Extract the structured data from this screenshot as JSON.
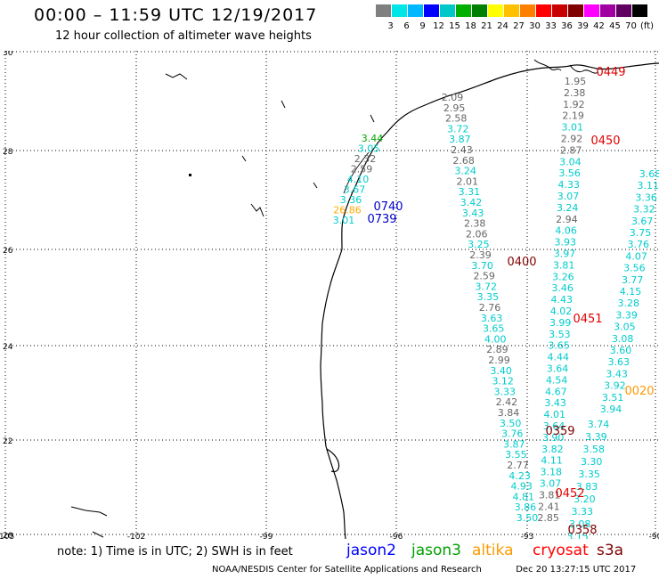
{
  "header": {
    "title": "00:00 – 11:59 UTC 12/19/2017",
    "subtitle": "12 hour collection of altimeter wave heights"
  },
  "scale": {
    "colors": [
      "#7f7f7f",
      "#00e5e5",
      "#00b8ff",
      "#0000ff",
      "#00c8c8",
      "#00b000",
      "#008000",
      "#ffff00",
      "#ffc000",
      "#ff8000",
      "#ff0000",
      "#c80000",
      "#800000",
      "#ff00ff",
      "#a000a0",
      "#600060",
      "#000000"
    ],
    "labels": [
      "3",
      "6",
      "9",
      "12",
      "15",
      "18",
      "21",
      "24",
      "27",
      "30",
      "33",
      "36",
      "39",
      "42",
      "45",
      "70",
      "(ft)"
    ]
  },
  "map": {
    "lat_ticks": [
      "30",
      "28",
      "26",
      "24",
      "22",
      "20"
    ],
    "lon_ticks": [
      "-105",
      "-102",
      "-99",
      "-96",
      "-93",
      "-90"
    ],
    "pass_labels": [
      {
        "text": "0449",
        "color": "#e00000"
      },
      {
        "text": "0450",
        "color": "#e00000"
      },
      {
        "text": "0740",
        "color": "#0000cc"
      },
      {
        "text": "0739",
        "color": "#0000cc"
      },
      {
        "text": "0400",
        "color": "#800000"
      },
      {
        "text": "0451",
        "color": "#e00000"
      },
      {
        "text": "0020",
        "color": "#ff9900"
      },
      {
        "text": "0359",
        "color": "#800000"
      },
      {
        "text": "0452",
        "color": "#e00000"
      },
      {
        "text": "0358",
        "color": "#800000"
      }
    ],
    "tracks": [
      {
        "name": "coast_track",
        "values": [
          {
            "v": "3.44",
            "c": "#00aa00"
          },
          {
            "v": "3.05",
            "c": "#00cccc"
          },
          {
            "v": "2.32",
            "c": "#666666"
          },
          {
            "v": "2.59",
            "c": "#666666"
          },
          {
            "v": "4.10",
            "c": "#00cccc"
          },
          {
            "v": "3.67",
            "c": "#00cccc"
          },
          {
            "v": "3.36",
            "c": "#00cccc"
          },
          {
            "v": "26.86",
            "c": "#ffaa00"
          },
          {
            "v": "3.01",
            "c": "#00cccc"
          }
        ]
      },
      {
        "name": "track_a",
        "values": [
          {
            "v": "2.09",
            "c": "#666666"
          },
          {
            "v": "2.95",
            "c": "#666666"
          },
          {
            "v": "2.58",
            "c": "#666666"
          },
          {
            "v": "3.72",
            "c": "#00cccc"
          },
          {
            "v": "3.87",
            "c": "#00cccc"
          },
          {
            "v": "2.43",
            "c": "#666666"
          },
          {
            "v": "2.68",
            "c": "#666666"
          },
          {
            "v": "3.24",
            "c": "#00cccc"
          },
          {
            "v": "2.01",
            "c": "#666666"
          },
          {
            "v": "3.31",
            "c": "#00cccc"
          },
          {
            "v": "3.42",
            "c": "#00cccc"
          },
          {
            "v": "3.43",
            "c": "#00cccc"
          },
          {
            "v": "2.38",
            "c": "#666666"
          },
          {
            "v": "2.06",
            "c": "#666666"
          },
          {
            "v": "3.25",
            "c": "#00cccc"
          },
          {
            "v": "2.39",
            "c": "#666666"
          },
          {
            "v": "3.70",
            "c": "#00cccc"
          },
          {
            "v": "2.59",
            "c": "#666666"
          },
          {
            "v": "3.72",
            "c": "#00cccc"
          },
          {
            "v": "3.35",
            "c": "#00cccc"
          },
          {
            "v": "2.76",
            "c": "#666666"
          },
          {
            "v": "3.63",
            "c": "#00cccc"
          },
          {
            "v": "3.65",
            "c": "#00cccc"
          },
          {
            "v": "4.00",
            "c": "#00cccc"
          },
          {
            "v": "2.89",
            "c": "#666666"
          },
          {
            "v": "2.99",
            "c": "#666666"
          },
          {
            "v": "3.40",
            "c": "#00cccc"
          },
          {
            "v": "3.12",
            "c": "#00cccc"
          },
          {
            "v": "3.33",
            "c": "#00cccc"
          },
          {
            "v": "2.42",
            "c": "#666666"
          },
          {
            "v": "3.84",
            "c": "#666666"
          },
          {
            "v": "3.50",
            "c": "#00cccc"
          },
          {
            "v": "3.76",
            "c": "#00cccc"
          },
          {
            "v": "3.87",
            "c": "#00cccc"
          },
          {
            "v": "3.55",
            "c": "#00cccc"
          },
          {
            "v": "2.77",
            "c": "#666666"
          },
          {
            "v": "4.23",
            "c": "#00cccc"
          },
          {
            "v": "4.93",
            "c": "#00cccc"
          },
          {
            "v": "4.81",
            "c": "#00cccc"
          },
          {
            "v": "3.86",
            "c": "#00cccc"
          },
          {
            "v": "3.50",
            "c": "#00cccc"
          }
        ]
      },
      {
        "name": "track_b",
        "values": [
          {
            "v": "1.95",
            "c": "#666666"
          },
          {
            "v": "2.38",
            "c": "#666666"
          },
          {
            "v": "1.92",
            "c": "#666666"
          },
          {
            "v": "2.19",
            "c": "#666666"
          },
          {
            "v": "3.01",
            "c": "#00cccc"
          },
          {
            "v": "2.92",
            "c": "#666666"
          },
          {
            "v": "2.87",
            "c": "#666666"
          },
          {
            "v": "3.04",
            "c": "#00cccc"
          },
          {
            "v": "3.56",
            "c": "#00cccc"
          },
          {
            "v": "4.33",
            "c": "#00cccc"
          },
          {
            "v": "3.07",
            "c": "#00cccc"
          },
          {
            "v": "3.24",
            "c": "#00cccc"
          },
          {
            "v": "2.94",
            "c": "#666666"
          },
          {
            "v": "4.06",
            "c": "#00cccc"
          },
          {
            "v": "3.93",
            "c": "#00cccc"
          },
          {
            "v": "3.97",
            "c": "#00cccc"
          },
          {
            "v": "3.81",
            "c": "#00cccc"
          },
          {
            "v": "3.26",
            "c": "#00cccc"
          },
          {
            "v": "3.46",
            "c": "#00cccc"
          },
          {
            "v": "4.43",
            "c": "#00cccc"
          },
          {
            "v": "4.02",
            "c": "#00cccc"
          },
          {
            "v": "3.99",
            "c": "#00cccc"
          },
          {
            "v": "3.53",
            "c": "#00cccc"
          },
          {
            "v": "3.65",
            "c": "#00cccc"
          },
          {
            "v": "4.44",
            "c": "#00cccc"
          },
          {
            "v": "3.64",
            "c": "#00cccc"
          },
          {
            "v": "4.54",
            "c": "#00cccc"
          },
          {
            "v": "4.67",
            "c": "#00cccc"
          },
          {
            "v": "3.43",
            "c": "#00cccc"
          },
          {
            "v": "4.01",
            "c": "#00cccc"
          },
          {
            "v": "3.64",
            "c": "#00cccc"
          },
          {
            "v": "3.90",
            "c": "#00cccc"
          },
          {
            "v": "3.82",
            "c": "#00cccc"
          },
          {
            "v": "4.11",
            "c": "#00cccc"
          },
          {
            "v": "3.18",
            "c": "#00cccc"
          },
          {
            "v": "3.07",
            "c": "#00cccc"
          },
          {
            "v": "3.81",
            "c": "#666666"
          },
          {
            "v": "2.41",
            "c": "#666666"
          },
          {
            "v": "2.85",
            "c": "#666666"
          }
        ]
      },
      {
        "name": "track_c",
        "values": [
          {
            "v": "3.74",
            "c": "#00cccc"
          },
          {
            "v": "3.39",
            "c": "#00cccc"
          },
          {
            "v": "3.58",
            "c": "#00cccc"
          },
          {
            "v": "3.30",
            "c": "#00cccc"
          },
          {
            "v": "3.35",
            "c": "#00cccc"
          },
          {
            "v": "3.83",
            "c": "#00cccc"
          },
          {
            "v": "3.20",
            "c": "#00cccc"
          },
          {
            "v": "3.33",
            "c": "#00cccc"
          },
          {
            "v": "3.08",
            "c": "#00cccc"
          },
          {
            "v": "3.15",
            "c": "#00cccc"
          }
        ]
      },
      {
        "name": "track_d",
        "values": [
          {
            "v": "3.68",
            "c": "#00cccc"
          },
          {
            "v": "3.11",
            "c": "#00cccc"
          },
          {
            "v": "3.36",
            "c": "#00cccc"
          },
          {
            "v": "3.32",
            "c": "#00cccc"
          },
          {
            "v": "3.67",
            "c": "#00cccc"
          },
          {
            "v": "3.75",
            "c": "#00cccc"
          },
          {
            "v": "3.76",
            "c": "#00cccc"
          },
          {
            "v": "4.07",
            "c": "#00cccc"
          },
          {
            "v": "3.56",
            "c": "#00cccc"
          },
          {
            "v": "3.77",
            "c": "#00cccc"
          },
          {
            "v": "4.15",
            "c": "#00cccc"
          },
          {
            "v": "3.28",
            "c": "#00cccc"
          },
          {
            "v": "3.39",
            "c": "#00cccc"
          },
          {
            "v": "3.05",
            "c": "#00cccc"
          },
          {
            "v": "3.08",
            "c": "#00cccc"
          },
          {
            "v": "3.60",
            "c": "#00cccc"
          },
          {
            "v": "3.63",
            "c": "#00cccc"
          },
          {
            "v": "3.43",
            "c": "#00cccc"
          },
          {
            "v": "3.92",
            "c": "#00cccc"
          },
          {
            "v": "3.51",
            "c": "#00cccc"
          },
          {
            "v": "3.94",
            "c": "#00cccc"
          }
        ]
      }
    ]
  },
  "footer": {
    "note": "note: 1) Time is in UTC; 2) SWH is in feet",
    "legend": [
      {
        "label": "jason2",
        "color": "#0000ff"
      },
      {
        "label": "jason3",
        "color": "#00a000"
      },
      {
        "label": "altika",
        "color": "#ff9900"
      },
      {
        "label": "cryosat",
        "color": "#ff0000"
      },
      {
        "label": "s3a",
        "color": "#800000"
      }
    ],
    "credit": "NOAA/NESDIS Center for Satellite Applications and Research",
    "timestamp": "Dec 20 13:27:15 UTC 2017"
  }
}
